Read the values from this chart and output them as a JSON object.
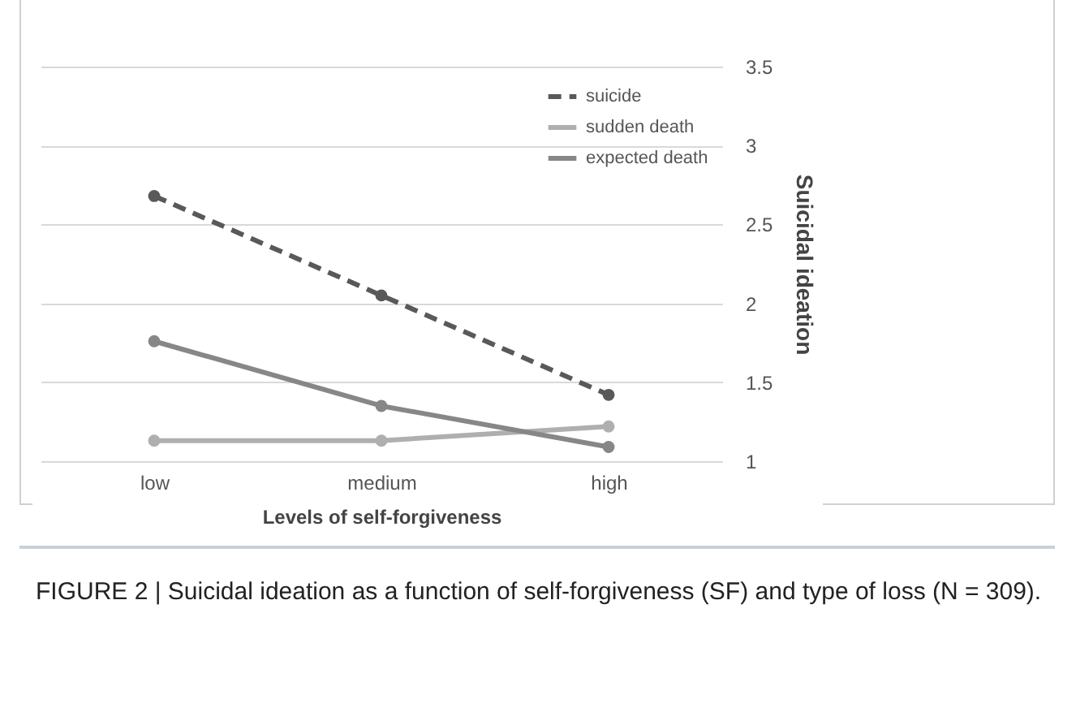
{
  "chart_data": {
    "type": "line",
    "xlabel": "Levels of self-forgiveness",
    "ylabel": "Suicidal ideation",
    "categories": [
      "low",
      "medium",
      "high"
    ],
    "series": [
      {
        "name": "suicide",
        "color": "#595959",
        "line_style": "dashed",
        "values": [
          2.68,
          2.05,
          1.42
        ]
      },
      {
        "name": "sudden death",
        "color": "#afafaf",
        "line_style": "solid",
        "values": [
          1.13,
          1.13,
          1.22
        ]
      },
      {
        "name": "expected death",
        "color": "#878787",
        "line_style": "solid",
        "values": [
          1.76,
          1.35,
          1.09
        ]
      }
    ],
    "ylim": [
      1,
      3.5
    ],
    "yticks": [
      1,
      1.5,
      2,
      2.5,
      3,
      3.5
    ],
    "grid": "y",
    "legend": "top right",
    "marker": "circle",
    "annotations": [
      "FIGURE 2 | Suicidal ideation as a function of self-forgiveness (SF) and type of loss (N = 309)."
    ]
  }
}
